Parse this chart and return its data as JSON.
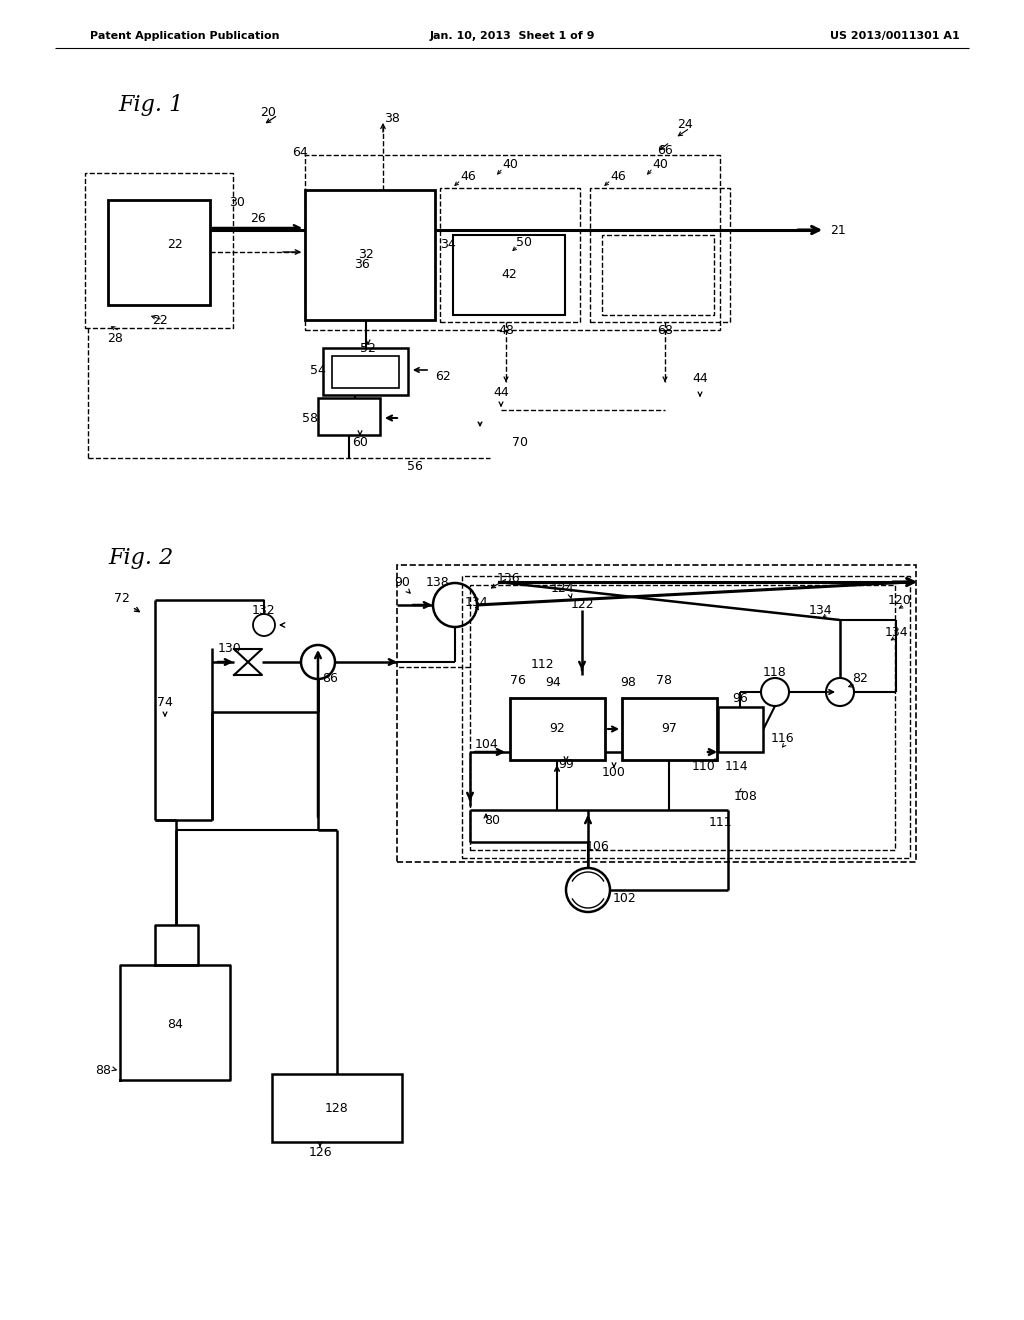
{
  "header_left": "Patent Application Publication",
  "header_mid": "Jan. 10, 2013  Sheet 1 of 9",
  "header_right": "US 2013/0011301 A1",
  "bg": "#ffffff"
}
